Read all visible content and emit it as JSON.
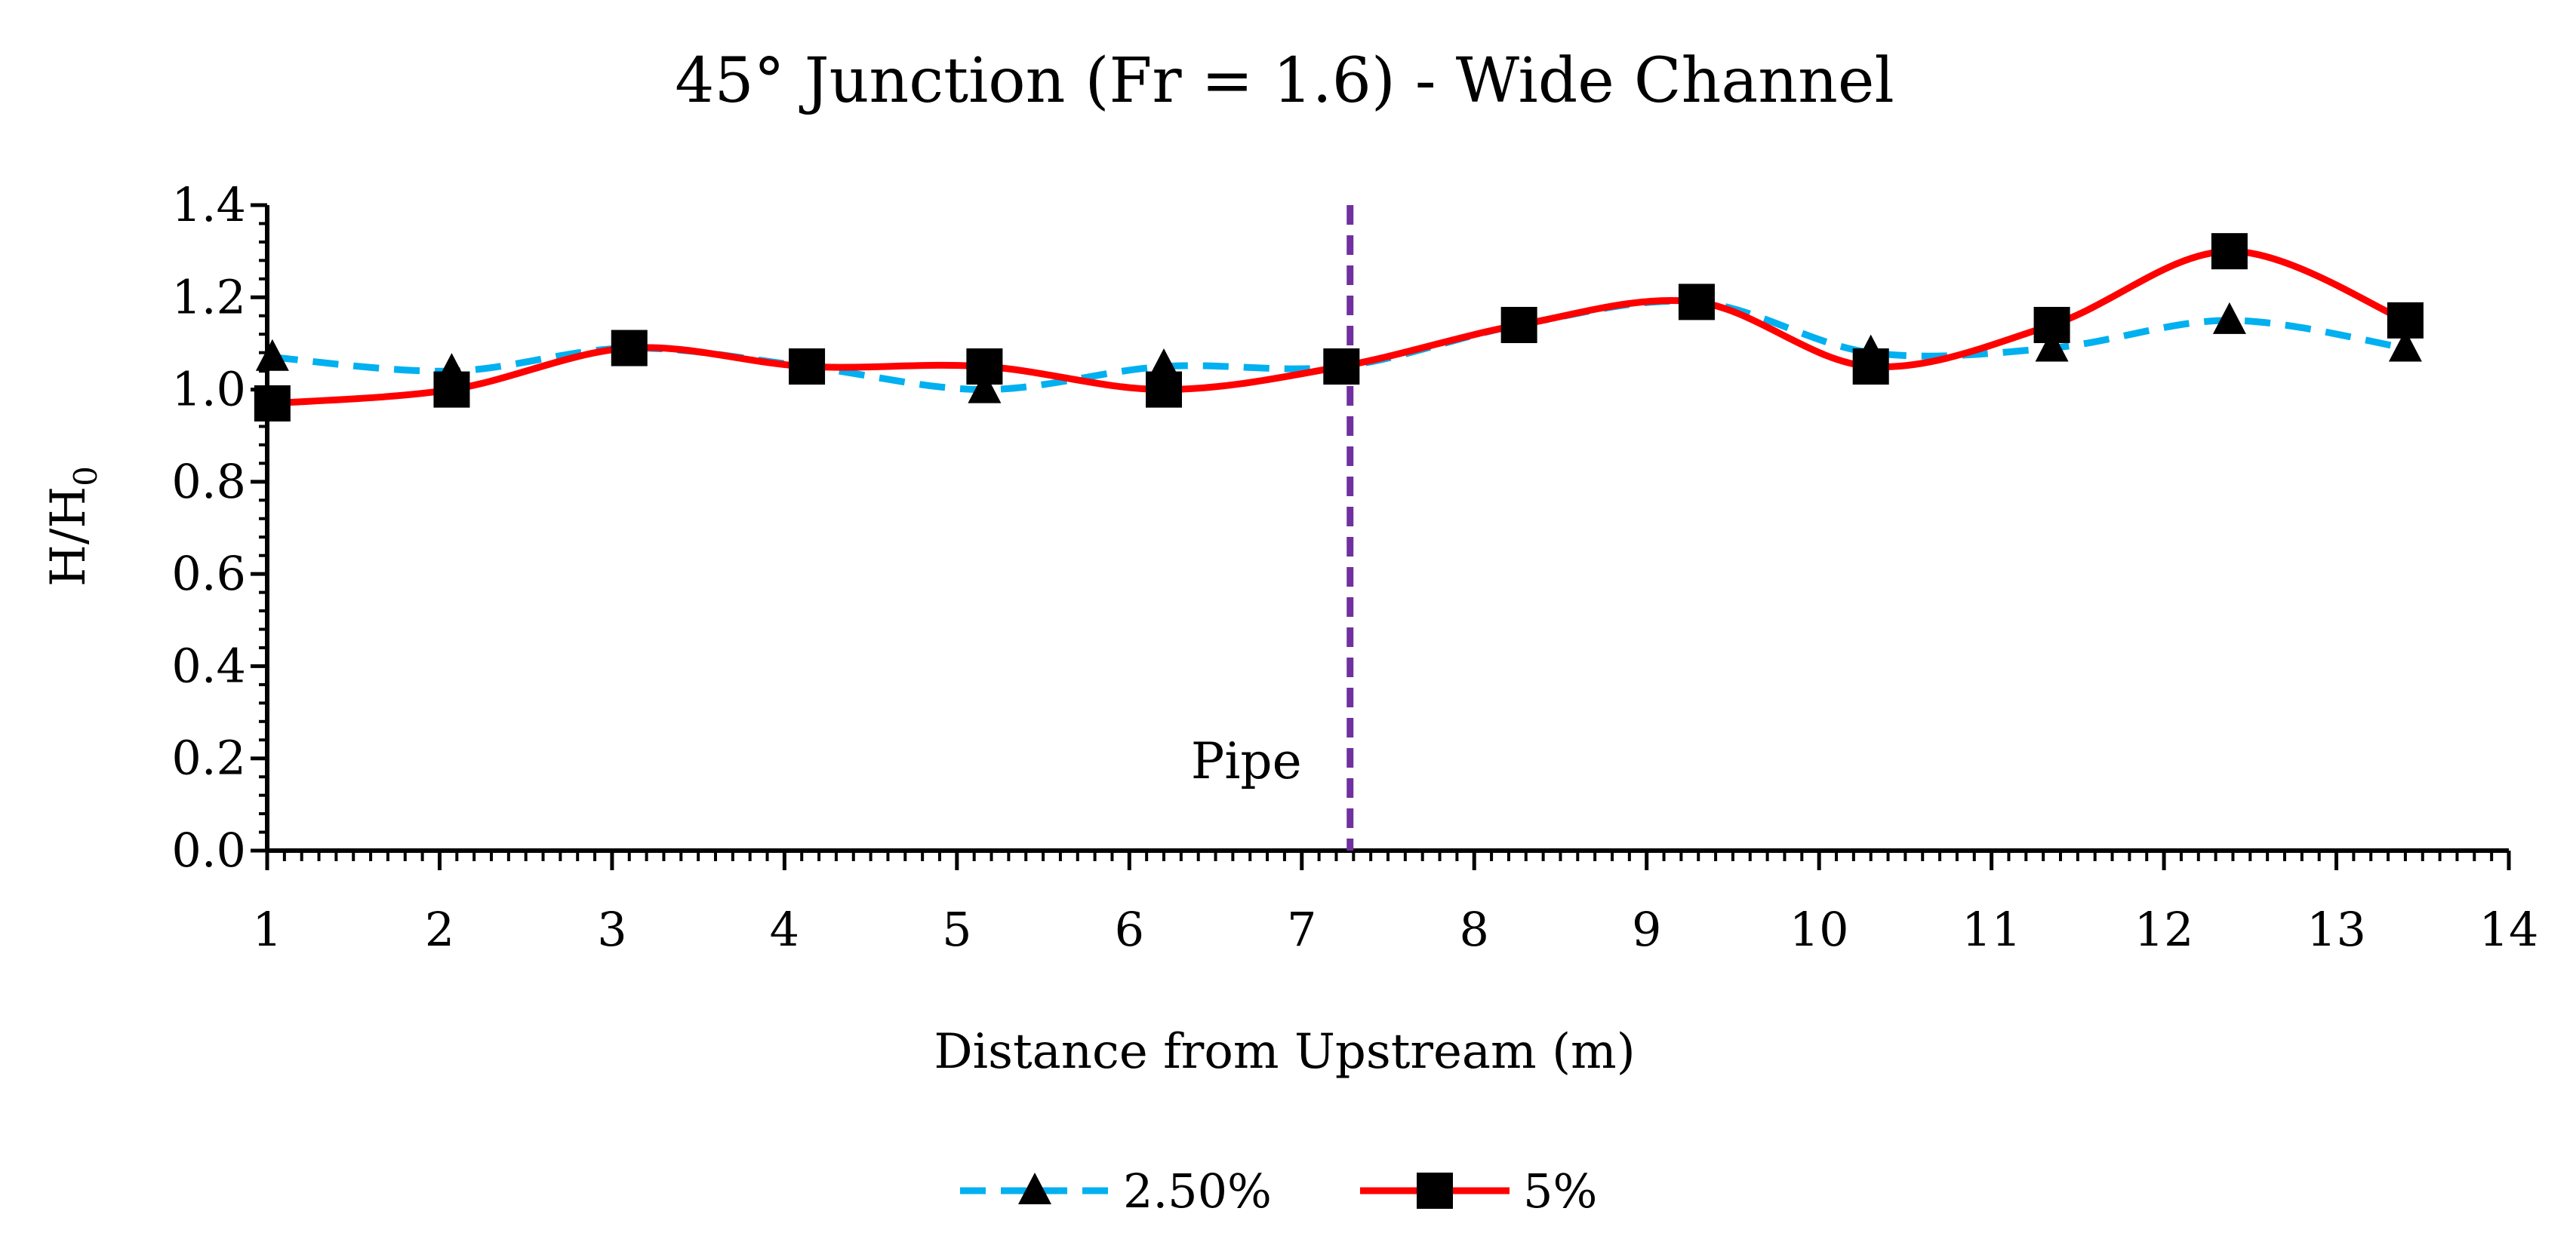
{
  "chart_data": {
    "type": "line",
    "title": "45° Junction (Fr = 1.6) - Wide Channel",
    "xlabel": "Distance from Upstream (m)",
    "ylabel": "H/H0",
    "ylabel_main": "H/H",
    "ylabel_sub": "0",
    "xlim": [
      1,
      14
    ],
    "ylim": [
      0,
      1.4
    ],
    "x_ticks": [
      1,
      2,
      3,
      4,
      5,
      6,
      7,
      8,
      9,
      10,
      11,
      12,
      13,
      14
    ],
    "x_tick_labels": [
      "1",
      "2",
      "3",
      "4",
      "5",
      "6",
      "7",
      "8",
      "9",
      "10",
      "11",
      "12",
      "13",
      "14"
    ],
    "y_ticks": [
      0,
      0.2,
      0.4,
      0.6,
      0.8,
      1.0,
      1.2,
      1.4
    ],
    "y_tick_labels": [
      "0.0",
      "0.2",
      "0.4",
      "0.6",
      "0.8",
      "1.0",
      "1.2",
      "1.4"
    ],
    "series": [
      {
        "name": "2.50%",
        "color": "#00B0F0",
        "line_style": "dashed",
        "marker": "triangle",
        "x": [
          1.03,
          2.07,
          3.1,
          4.13,
          5.16,
          6.2,
          7.23,
          8.26,
          9.29,
          10.3,
          11.35,
          12.38,
          13.4
        ],
        "y": [
          1.07,
          1.04,
          1.09,
          1.05,
          1.0,
          1.05,
          1.05,
          1.14,
          1.19,
          1.08,
          1.09,
          1.15,
          1.09
        ]
      },
      {
        "name": "5%",
        "color": "#FF0000",
        "line_style": "solid",
        "marker": "square",
        "x": [
          1.03,
          2.07,
          3.1,
          4.13,
          5.16,
          6.2,
          7.23,
          8.26,
          9.29,
          10.3,
          11.35,
          12.38,
          13.4
        ],
        "y": [
          0.97,
          1.0,
          1.09,
          1.05,
          1.05,
          1.0,
          1.05,
          1.14,
          1.19,
          1.05,
          1.14,
          1.3,
          1.15
        ]
      }
    ],
    "annotations": [
      {
        "text": "Pipe",
        "x": 7.28,
        "color": "#7030A0",
        "style": "dashed-vertical-line"
      }
    ],
    "legend_position": "bottom-center",
    "grid": false
  }
}
